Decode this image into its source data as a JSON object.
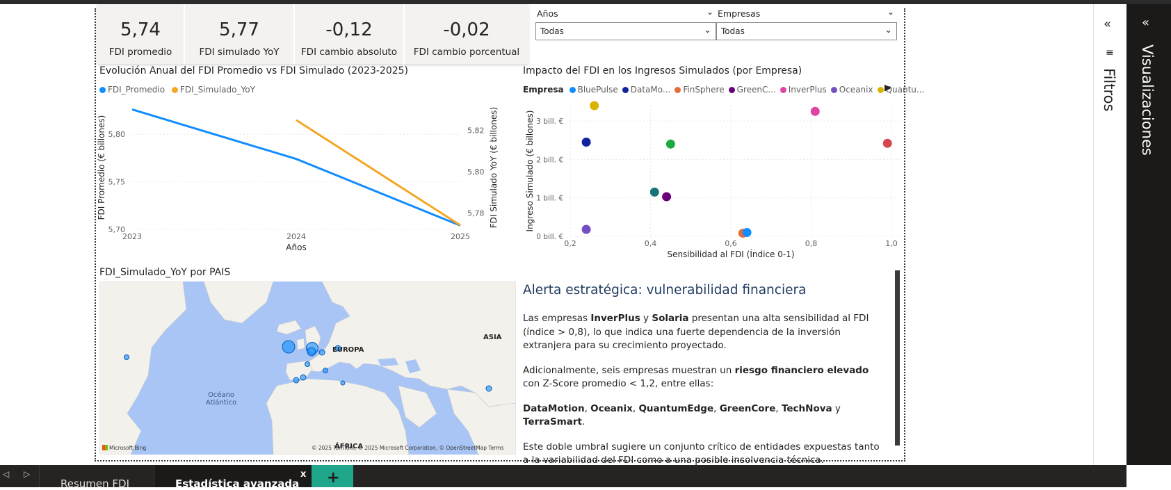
{
  "kpis": [
    {
      "value": "5,74",
      "label": "FDI promedio"
    },
    {
      "value": "5,77",
      "label": "FDI simulado YoY"
    },
    {
      "value": "-0,12",
      "label": "FDI cambio absoluto"
    },
    {
      "value": "-0,02",
      "label": "FDI cambio porcentual"
    }
  ],
  "slicers": {
    "years": {
      "title": "Años",
      "value": "Todas"
    },
    "companies": {
      "title": "Empresas",
      "value": "Todas"
    }
  },
  "line_chart": {
    "title": "Evolución Anual del FDI Promedio vs FDI Simulado (2023-2025)",
    "legend": [
      {
        "name": "FDI_Promedio",
        "color": "#118dff"
      },
      {
        "name": "FDI_Simulado_YoY",
        "color": "#f5a623"
      }
    ]
  },
  "scatter_chart": {
    "title": "Impacto del FDI en los Ingresos Simulados (por Empresa)",
    "legend_title": "Empresa",
    "legend": [
      {
        "name": "BluePulse",
        "color": "#118dff"
      },
      {
        "name": "DataMo...",
        "color": "#12239e"
      },
      {
        "name": "FinSphere",
        "color": "#e66c37"
      },
      {
        "name": "GreenC...",
        "color": "#6b007b"
      },
      {
        "name": "InverPlus",
        "color": "#e044a7"
      },
      {
        "name": "Oceanix",
        "color": "#744ec2"
      },
      {
        "name": "Quantu...",
        "color": "#d9b300"
      }
    ]
  },
  "chart_data": [
    {
      "type": "line",
      "x": [
        "2023",
        "2024",
        "2025"
      ],
      "xlabel": "Años",
      "ylabel": "FDI Promedio (€ billones)",
      "y2label": "FDI Simulado YoY (€ billones)",
      "ylim": [
        5.7,
        5.83
      ],
      "y_ticks": [
        "5,70",
        "5,75",
        "5,80"
      ],
      "y2lim": [
        5.772,
        5.832
      ],
      "y2_ticks": [
        "5,78",
        "5,80",
        "5,82"
      ],
      "x_ticks": [
        "2023",
        "2024",
        "2025"
      ],
      "series": [
        {
          "name": "FDI_Promedio",
          "axis": "left",
          "values": [
            5.826,
            5.774,
            5.704
          ]
        },
        {
          "name": "FDI_Simulado_YoY",
          "axis": "right",
          "values": [
            null,
            5.825,
            5.774
          ]
        }
      ]
    },
    {
      "type": "scatter",
      "xlabel": "Sensibilidad al FDI (Índice 0-1)",
      "ylabel": "Ingreso Simulado (€ billones)",
      "xlim": [
        0.2,
        1.0
      ],
      "ylim": [
        0,
        3.4
      ],
      "x_ticks": [
        "0,2",
        "0,4",
        "0,6",
        "0,8",
        "1,0"
      ],
      "y_ticks": [
        "0 bill. €",
        "1 bill. €",
        "2 bill. €",
        "3 bill. €"
      ],
      "points": [
        {
          "x": 0.26,
          "y": 3.4,
          "color": "#d9b300"
        },
        {
          "x": 0.81,
          "y": 3.25,
          "color": "#e044a7"
        },
        {
          "x": 0.24,
          "y": 2.45,
          "color": "#12239e"
        },
        {
          "x": 0.45,
          "y": 2.4,
          "color": "#1aab40"
        },
        {
          "x": 0.99,
          "y": 2.42,
          "color": "#d64550"
        },
        {
          "x": 0.41,
          "y": 1.15,
          "color": "#197278"
        },
        {
          "x": 0.44,
          "y": 1.03,
          "color": "#6b007b"
        },
        {
          "x": 0.24,
          "y": 0.18,
          "color": "#744ec2"
        },
        {
          "x": 0.63,
          "y": 0.08,
          "color": "#e66c37"
        },
        {
          "x": 0.64,
          "y": 0.1,
          "color": "#118dff"
        }
      ]
    }
  ],
  "map": {
    "title": "FDI_Simulado_YoY por PAIS",
    "labels": {
      "europe": "EUROPA",
      "asia": "ASIA",
      "africa": "ÁFRICA",
      "ocean": "Océano\nAtlántico"
    },
    "credit": "© 2025 TomTom, © 2025 Microsoft Corporation, © OpenStreetMap  Terms",
    "brand": "Microsoft Bing"
  },
  "alert": {
    "title": "Alerta estratégica: vulnerabilidad financiera",
    "p1_a": "Las empresas ",
    "p1_b": "InverPlus",
    "p1_c": " y ",
    "p1_d": "Solaria",
    "p1_e": " presentan una alta sensibilidad al FDI (índice > 0,8), lo que indica una fuerte dependencia de la inversión extranjera para su crecimiento proyectado.",
    "p2_a": "Adicionalmente, seis empresas muestran un ",
    "p2_b": "riesgo financiero elevado",
    "p2_c": " con Z-Score promedio < 1,2, entre ellas:",
    "companies": [
      "DataMotion",
      "Oceanix",
      "QuantumEdge",
      "GreenCore",
      "TechNova",
      "TerraSmart"
    ],
    "sep1": ", ",
    "sep_last": " y ",
    "end": ".",
    "p4": "Este doble umbral sugiere un conjunto crítico de entidades expuestas tanto a la variabilidad del FDI como a una posible insolvencia técnica."
  },
  "panels": {
    "filters": "Filtros",
    "visualizations": "Visualizaciones"
  },
  "tabs": [
    {
      "label": "Resumen FDI",
      "active": false
    },
    {
      "label": "Estadística avanzada",
      "active": true
    }
  ],
  "tab_close": "x",
  "tab_add": "+"
}
